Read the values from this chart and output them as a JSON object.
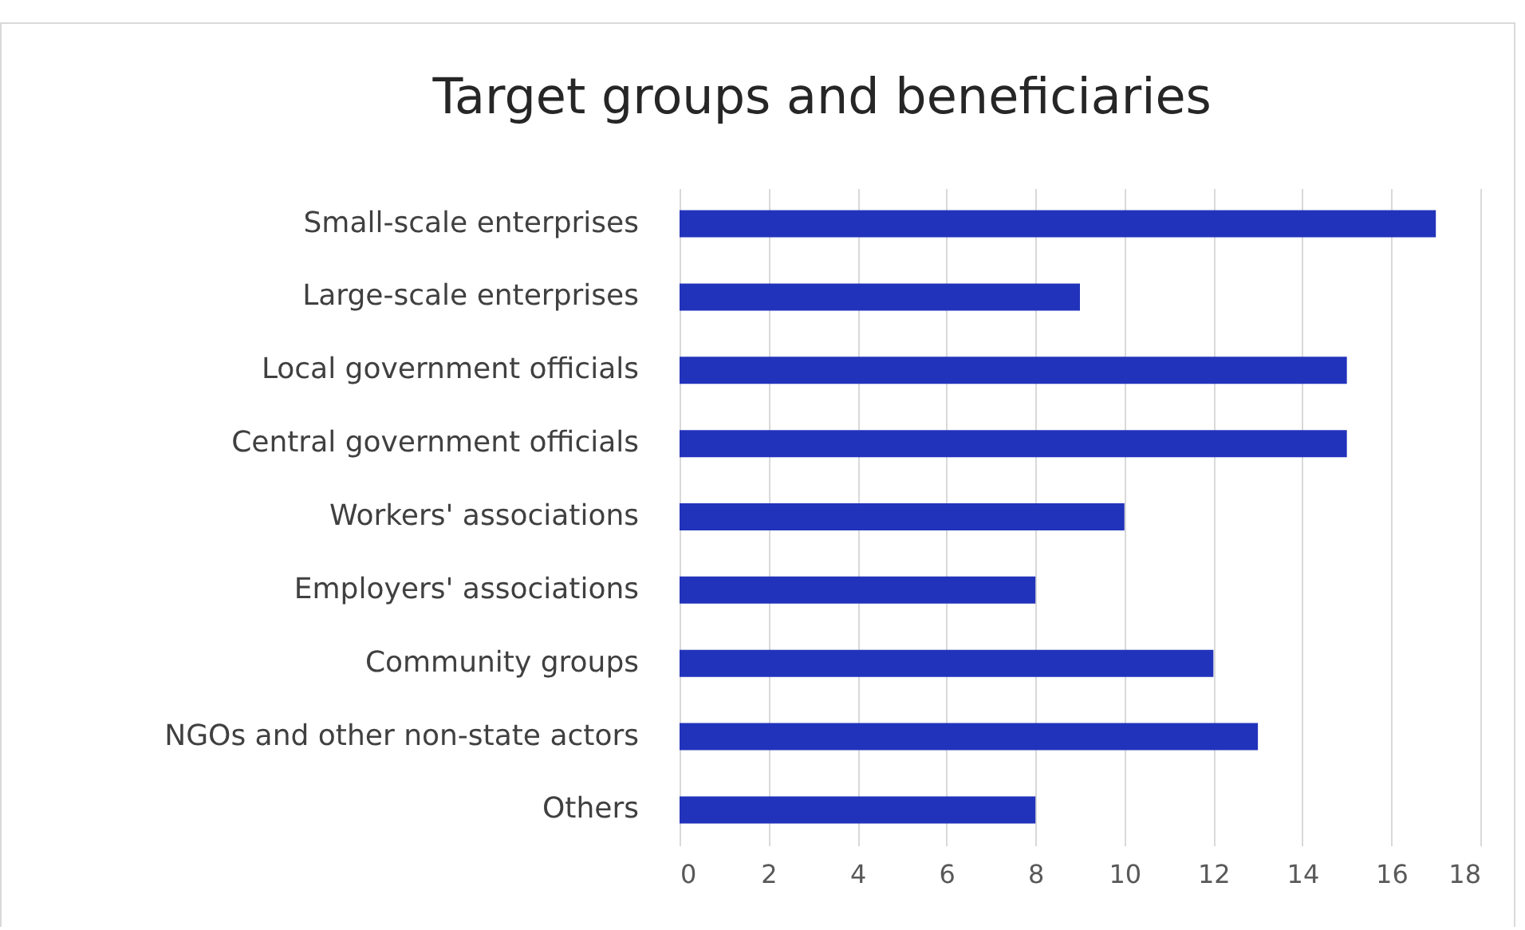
{
  "chart_data": {
    "type": "bar",
    "orientation": "horizontal",
    "title": "Target groups and beneficiaries",
    "categories": [
      "Small-scale enterprises",
      "Large-scale enterprises",
      "Local government officials",
      "Central government officials",
      "Workers' associations",
      "Employers' associations",
      "Community groups",
      "NGOs and other non-state actors",
      "Others"
    ],
    "values": [
      17,
      9,
      15,
      15,
      10,
      8,
      12,
      13,
      8
    ],
    "color": "#2233bb",
    "xlim": [
      0,
      18
    ],
    "xticks": [
      0,
      2,
      4,
      6,
      8,
      10,
      12,
      14,
      16,
      18
    ],
    "grid": "x"
  }
}
